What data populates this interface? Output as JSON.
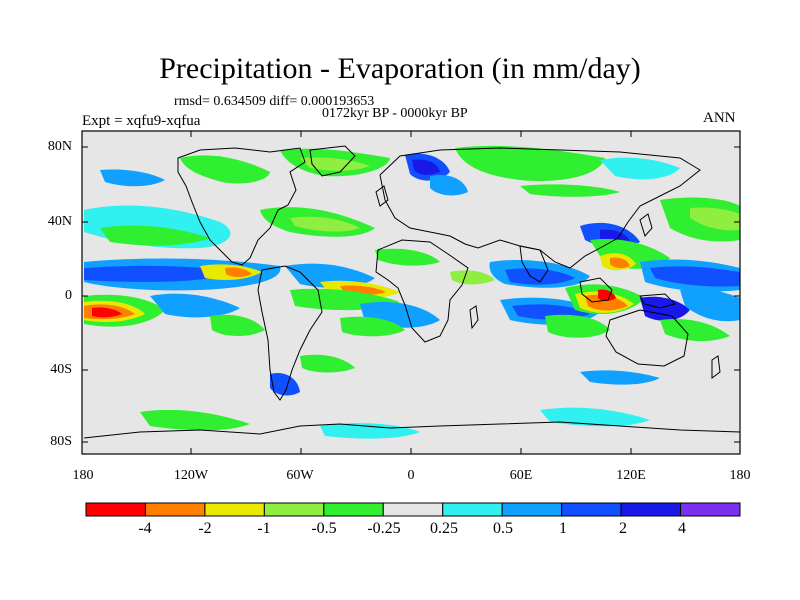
{
  "title": "Precipitation - Evaporation (in mm/day)",
  "stats": "rmsd= 0.634509 diff= 0.000193653",
  "period": "0172kyr BP - 0000kyr BP",
  "experiment": "Expt = xqfu9-xqfua",
  "season": "ANN",
  "lat_labels": [
    "80N",
    "40N",
    "0",
    "40S",
    "80S"
  ],
  "lon_labels": [
    "180",
    "120W",
    "60W",
    "0",
    "60E",
    "120E",
    "180"
  ],
  "colorbar": {
    "labels": [
      "-4",
      "-2",
      "-1",
      "-0.5",
      "-0.25",
      "0.25",
      "0.5",
      "1",
      "2",
      "4"
    ],
    "colors": [
      "#ff0000",
      "#ff8000",
      "#e8e800",
      "#90ee40",
      "#30ee30",
      "#e6e6e6",
      "#30f0f0",
      "#10a0ff",
      "#1050ff",
      "#1818e8",
      "#7a30f0"
    ]
  }
}
